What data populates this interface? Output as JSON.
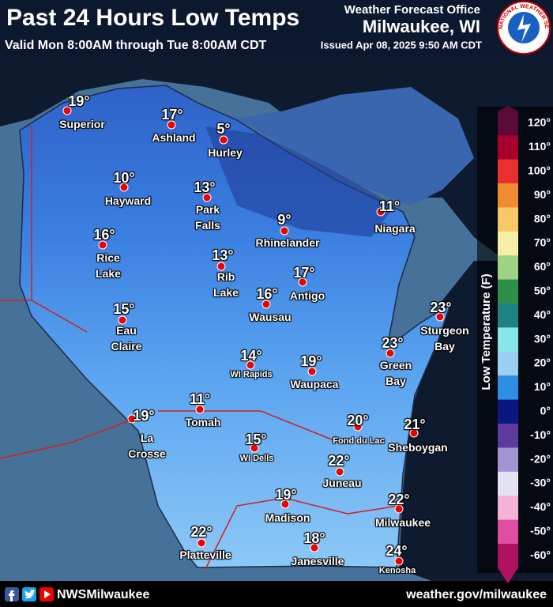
{
  "header": {
    "title": "Past 24 Hours Low Temps",
    "valid": "Valid Mon 8:00AM through Tue 8:00AM CDT",
    "issued": "Issued Apr 08, 2025 9:50 AM CDT",
    "office_line1": "Weather Forecast Office",
    "office_line2": "Milwaukee, WI",
    "logo_text": "NATIONAL WEATHER SERVICE"
  },
  "stations": [
    {
      "name": "Superior",
      "temp": "19°"
    },
    {
      "name": "Ashland",
      "temp": "17°"
    },
    {
      "name": "Hurley",
      "temp": "5°"
    },
    {
      "name": "Hayward",
      "temp": "10°"
    },
    {
      "name": "Park Falls",
      "temp": "13°"
    },
    {
      "name": "Rhinelander",
      "temp": "9°"
    },
    {
      "name": "Niagara",
      "temp": "11°"
    },
    {
      "name": "Rice Lake",
      "temp": "16°"
    },
    {
      "name": "Rib Lake",
      "temp": "13°"
    },
    {
      "name": "Antigo",
      "temp": "17°"
    },
    {
      "name": "Wausau",
      "temp": "16°"
    },
    {
      "name": "Sturgeon Bay",
      "temp": "23°"
    },
    {
      "name": "Eau Claire",
      "temp": "15°"
    },
    {
      "name": "Green Bay",
      "temp": "23°"
    },
    {
      "name": "WI Rapids",
      "temp": "14°"
    },
    {
      "name": "Waupaca",
      "temp": "19°"
    },
    {
      "name": "Tomah",
      "temp": "11°"
    },
    {
      "name": "La Crosse",
      "temp": "19°"
    },
    {
      "name": "Fond du Lac",
      "temp": "20°"
    },
    {
      "name": "Sheboygan",
      "temp": "21°"
    },
    {
      "name": "WI Dells",
      "temp": "15°"
    },
    {
      "name": "Juneau",
      "temp": "22°"
    },
    {
      "name": "Madison",
      "temp": "19°"
    },
    {
      "name": "Milwaukee",
      "temp": "22°"
    },
    {
      "name": "Platteville",
      "temp": "22°"
    },
    {
      "name": "Janesville",
      "temp": "18°"
    },
    {
      "name": "Kenosha",
      "temp": "24°"
    }
  ],
  "legend": {
    "title": "Low Temperature (F)",
    "stops": [
      {
        "label": "120°",
        "color": "#5c0a3a"
      },
      {
        "label": "110°",
        "color": "#a8002c"
      },
      {
        "label": "100°",
        "color": "#e8302c"
      },
      {
        "label": "90°",
        "color": "#f28a30"
      },
      {
        "label": "80°",
        "color": "#f8c868"
      },
      {
        "label": "70°",
        "color": "#f6eea6"
      },
      {
        "label": "60°",
        "color": "#9ed284"
      },
      {
        "label": "50°",
        "color": "#2e9048"
      },
      {
        "label": "40°",
        "color": "#1e8282"
      },
      {
        "label": "30°",
        "color": "#86e6e6"
      },
      {
        "label": "20°",
        "color": "#9ccff2"
      },
      {
        "label": "10°",
        "color": "#2e8ee2"
      },
      {
        "label": "0°",
        "color": "#0c1680"
      },
      {
        "label": "-10°",
        "color": "#5c3a9e"
      },
      {
        "label": "-20°",
        "color": "#a294d0"
      },
      {
        "label": "-30°",
        "color": "#e2e2f2"
      },
      {
        "label": "-40°",
        "color": "#f4b2d6"
      },
      {
        "label": "-50°",
        "color": "#e04ea2"
      },
      {
        "label": "-60°",
        "color": "#b01060"
      }
    ]
  },
  "footer": {
    "handle": "NWSMilwaukee",
    "url": "weather.gov/milwaukee"
  }
}
